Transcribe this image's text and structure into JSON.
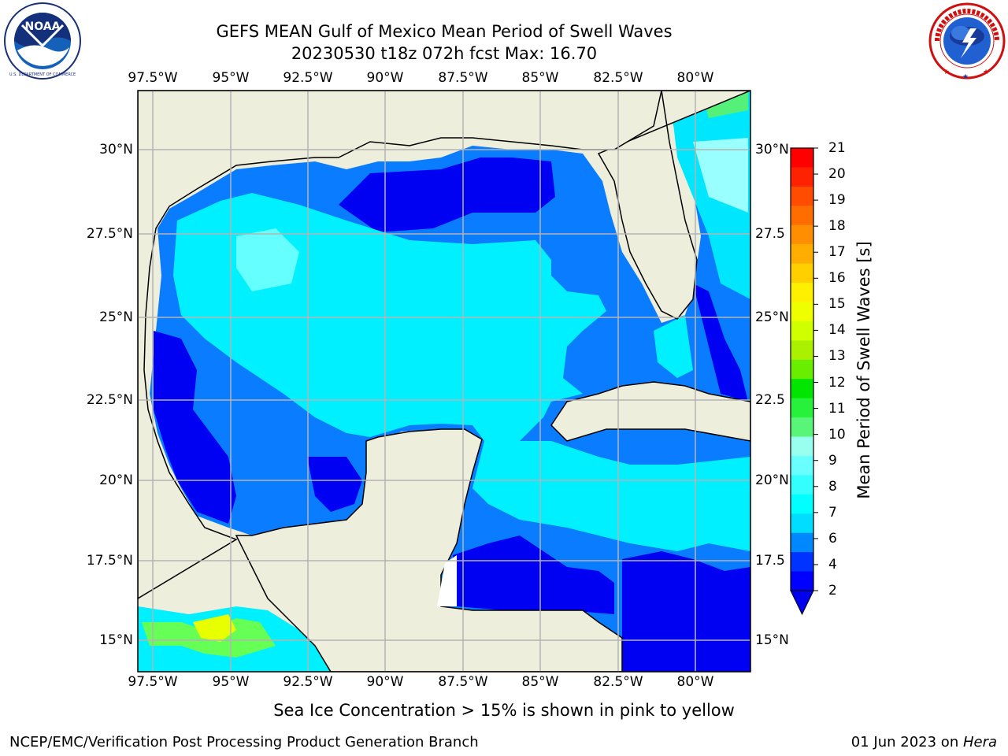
{
  "title": {
    "line1": "GEFS MEAN Gulf of Mexico Mean Period of Swell Waves",
    "line2": "20230530 t18z 072h fcst   Max: 16.70"
  },
  "logos": {
    "left": {
      "icon": "noaa-logo-icon",
      "text": "NOAA",
      "ring_text": "NATIONAL OCEANIC AND ATMOSPHERIC ADMINISTRATION · U.S. DEPARTMENT OF COMMERCE"
    },
    "right": {
      "icon": "nws-logo-icon",
      "ring_text": "NATIONAL WEATHER SERVICE"
    }
  },
  "axes": {
    "lon_labels": [
      "97.5°W",
      "95°W",
      "92.5°W",
      "90°W",
      "87.5°W",
      "85°W",
      "82.5°W",
      "80°W"
    ],
    "lat_labels": [
      "30°N",
      "27.5°N",
      "25°N",
      "22.5°N",
      "20°N",
      "17.5°N",
      "15°N"
    ],
    "lat_labels_right": [
      "30°N",
      "27.5",
      "25°N",
      "22.5",
      "20°N",
      "17.5",
      "15°N"
    ]
  },
  "colorbar": {
    "label": "Mean Period of Swell Waves [s]",
    "ticks": [
      "21",
      "20",
      "19",
      "18",
      "17",
      "16",
      "15",
      "14",
      "13",
      "12",
      "11",
      "10",
      "9",
      "8",
      "7",
      "6",
      "4",
      "2"
    ],
    "colors": [
      "#ff0000",
      "#ff2200",
      "#ff4c00",
      "#ff6d00",
      "#ff8e00",
      "#ffae00",
      "#ffcf00",
      "#ffef00",
      "#f0ff00",
      "#d0ff00",
      "#aaf000",
      "#6aee00",
      "#00e600",
      "#27f13a",
      "#58f578",
      "#99ffef",
      "#6affff",
      "#33ffff",
      "#00ffff",
      "#00ddff",
      "#0088ff",
      "#0033ff",
      "#0000ff"
    ],
    "under_color": "#0000ee"
  },
  "map": {
    "land_color": "#eeeedd",
    "grid_color": "#b4b4b4"
  },
  "notes": {
    "ice": "Sea Ice Concentration > 15% is shown in pink to yellow"
  },
  "footer": {
    "left": "NCEP/EMC/Verification Post Processing Product Generation Branch",
    "right_date": "01 Jun 2023 on ",
    "right_host": "Hera"
  }
}
